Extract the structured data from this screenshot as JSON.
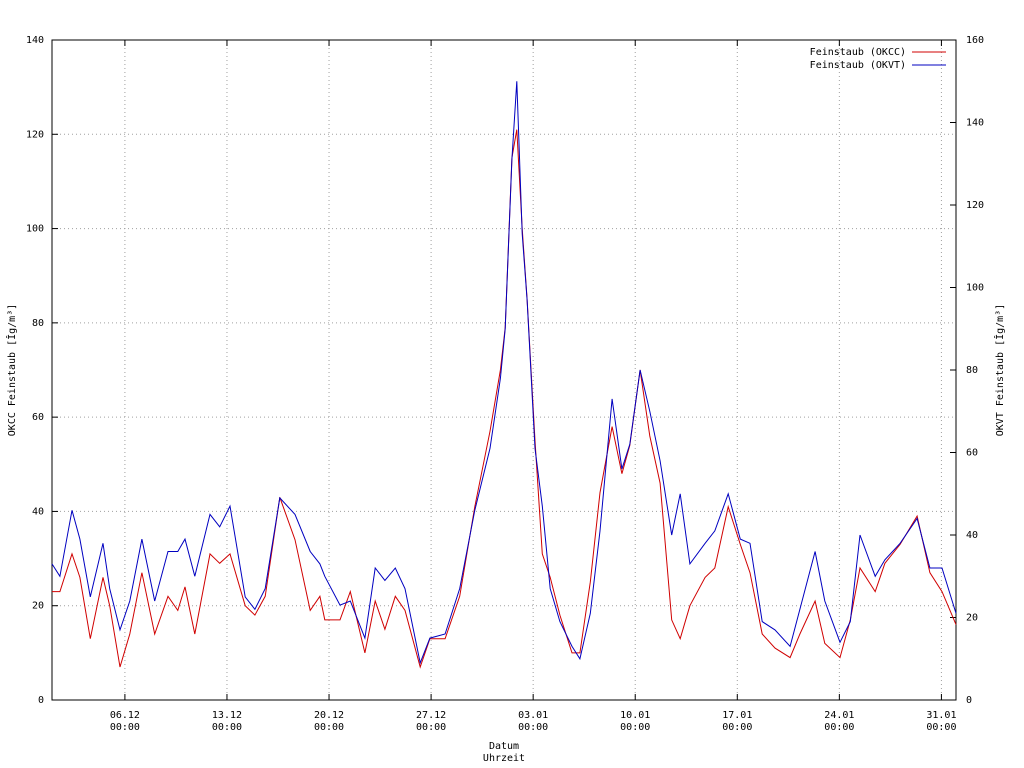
{
  "chart_data": {
    "type": "line",
    "xlabel": [
      "Datum",
      "Uhrzeit"
    ],
    "ylabel": "OKCC Feinstaub [Îg/m³]",
    "y2label": "OKVT Feinstaub [Îg/m³]",
    "grid": true,
    "legend": "top right",
    "xlim": [
      "01.12 00:00",
      "01.02 00:00"
    ],
    "xticks": [
      {
        "value": "06.12 00:00",
        "label": [
          "06.12",
          "00:00"
        ]
      },
      {
        "value": "13.12 00:00",
        "label": [
          "13.12",
          "00:00"
        ]
      },
      {
        "value": "20.12 00:00",
        "label": [
          "20.12",
          "00:00"
        ]
      },
      {
        "value": "27.12 00:00",
        "label": [
          "27.12",
          "00:00"
        ]
      },
      {
        "value": "03.01 00:00",
        "label": [
          "03.01",
          "00:00"
        ]
      },
      {
        "value": "10.01 00:00",
        "label": [
          "10.01",
          "00:00"
        ]
      },
      {
        "value": "17.01 00:00",
        "label": [
          "17.01",
          "00:00"
        ]
      },
      {
        "value": "24.01 00:00",
        "label": [
          "24.01",
          "00:00"
        ]
      },
      {
        "value": "31.01 00:00",
        "label": [
          "31.01",
          "00:00"
        ]
      }
    ],
    "ylim": [
      0,
      140
    ],
    "yticks": [
      0,
      20,
      40,
      60,
      80,
      100,
      120,
      140
    ],
    "y2lim": [
      0,
      160
    ],
    "y2ticks": [
      0,
      20,
      40,
      60,
      80,
      100,
      120,
      140,
      160
    ],
    "x": [
      "01.12 00:00",
      "01.12 13:00",
      "02.12 09:00",
      "02.12 22:00",
      "03.12 15:00",
      "04.12 12:00",
      "04.12 23:00",
      "05.12 16:00",
      "06.12 08:00",
      "07.12 04:00",
      "08.12 01:00",
      "08.12 23:00",
      "09.12 15:00",
      "10.12 03:00",
      "10.12 19:00",
      "11.12 20:00",
      "12.12 12:00",
      "13.12 05:00",
      "14.12 06:00",
      "14.12 22:00",
      "15.12 15:00",
      "16.12 15:00",
      "17.12 16:00",
      "18.12 17:00",
      "19.12 09:00",
      "19.12 17:00",
      "20.12 18:00",
      "21.12 11:00",
      "22.12 11:00",
      "23.12 04:00",
      "23.12 20:00",
      "24.12 13:00",
      "25.12 05:00",
      "26.12 06:00",
      "26.12 22:00",
      "27.12 23:00",
      "28.12 23:00",
      "30.12 00:00",
      "31.12 01:00",
      "31.12 18:00",
      "01.01 02:00",
      "01.01 13:00",
      "01.01 21:00",
      "02.01 06:00",
      "02.01 14:00",
      "03.01 03:00",
      "03.01 15:00",
      "04.01 04:00",
      "04.01 20:00",
      "05.01 16:00",
      "06.01 05:00",
      "06.01 22:00",
      "07.01 14:00",
      "08.01 10:00",
      "09.01 02:00",
      "09.01 15:00",
      "10.01 08:00",
      "11.01 00:00",
      "11.01 17:00",
      "12.01 12:00",
      "13.01 02:00",
      "13.01 18:00",
      "14.01 19:00",
      "15.01 11:00",
      "16.01 09:00",
      "17.01 05:00",
      "17.01 21:00",
      "18.01 17:00",
      "19.01 14:00",
      "20.01 15:00",
      "21.01 07:00",
      "22.01 08:00",
      "23.01 00:00",
      "24.01 01:00",
      "24.01 18:00",
      "25.01 10:00",
      "26.01 11:00",
      "27.01 03:00",
      "28.01 04:00",
      "29.01 08:00",
      "30.01 05:00",
      "31.01 01:00",
      "01.02 00:00"
    ],
    "series": [
      {
        "name": "Feinstaub (OKCC)",
        "color": "#d00000",
        "values": [
          23,
          23,
          31,
          26,
          13,
          26,
          20,
          7,
          14,
          27,
          14,
          22,
          19,
          24,
          14,
          31,
          29,
          31,
          20,
          18,
          22,
          43,
          34,
          19,
          22,
          17,
          17,
          23,
          10,
          21,
          15,
          22,
          19,
          7,
          13,
          13,
          22,
          41,
          57,
          70,
          79,
          115,
          121,
          100,
          85,
          55,
          31,
          26,
          18,
          10,
          10,
          25,
          44,
          58,
          48,
          54,
          70,
          56,
          46,
          17,
          13,
          20,
          26,
          28,
          41,
          33,
          27,
          14,
          11,
          9,
          14,
          21,
          12,
          9,
          17,
          28,
          23,
          29,
          33,
          39,
          27,
          23,
          16
        ]
      },
      {
        "name": "Feinstaub (OKVT)",
        "color": "#0000c0",
        "axis": "y2",
        "values": [
          33,
          30,
          46,
          39,
          25,
          38,
          27,
          17,
          24,
          39,
          24,
          36,
          36,
          39,
          30,
          45,
          42,
          47,
          25,
          22,
          27,
          49,
          45,
          36,
          33,
          30,
          23,
          24,
          15,
          32,
          29,
          32,
          27,
          9,
          15,
          16,
          27,
          46,
          61,
          78,
          90,
          131,
          150,
          113,
          97,
          61,
          47,
          27,
          19,
          13,
          10,
          21,
          41,
          73,
          56,
          62,
          80,
          70,
          58,
          40,
          50,
          33,
          38,
          41,
          50,
          39,
          38,
          19,
          17,
          13,
          22,
          36,
          24,
          14,
          19,
          40,
          30,
          34,
          38,
          44,
          32,
          32,
          21
        ]
      }
    ]
  }
}
